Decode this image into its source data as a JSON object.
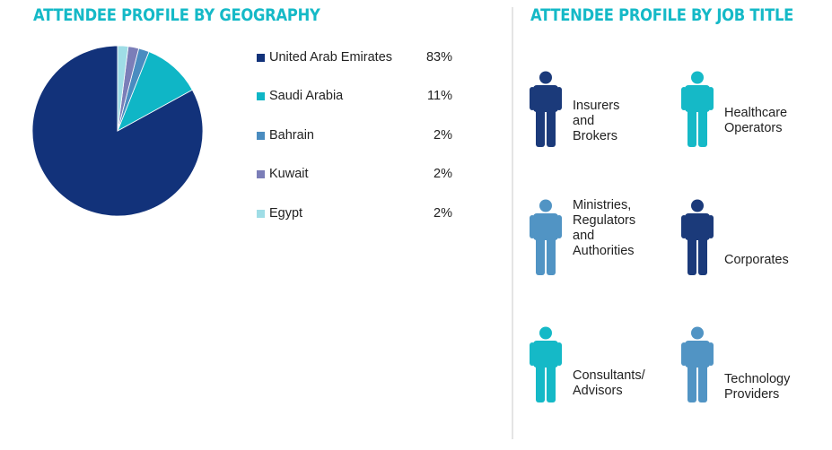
{
  "geography": {
    "title": "ATTENDEE PROFILE BY GEOGRAPHY"
  },
  "job": {
    "title": "ATTENDEE PROFILE BY JOB TITLE",
    "items": [
      {
        "label": "Insurers\nand\nBrokers",
        "color": "#1b3a7a",
        "icon": "person-icon"
      },
      {
        "label": "Healthcare\nOperators",
        "color": "#15b9c7",
        "icon": "person-icon"
      },
      {
        "label": "Ministries,\nRegulators\nand\nAuthorities",
        "color": "#5194c4",
        "icon": "person-icon"
      },
      {
        "label": "Corporates",
        "color": "#1b3a7a",
        "icon": "person-icon"
      },
      {
        "label": "Consultants/\nAdvisors",
        "color": "#15b9c7",
        "icon": "person-icon"
      },
      {
        "label": "Technology\nProviders",
        "color": "#5194c4",
        "icon": "person-icon"
      }
    ]
  },
  "chart_data": {
    "type": "pie",
    "title": "ATTENDEE PROFILE BY GEOGRAPHY",
    "legend": "right",
    "slices": [
      {
        "label": "United Arab Emirates",
        "value": 83,
        "display": "83%",
        "color": "#12327a"
      },
      {
        "label": "Saudi Arabia",
        "value": 11,
        "display": "11%",
        "color": "#0fb6c6"
      },
      {
        "label": "Bahrain",
        "value": 2,
        "display": "2%",
        "color": "#4a8cc0"
      },
      {
        "label": "Kuwait",
        "value": 2,
        "display": "2%",
        "color": "#7b7eb8"
      },
      {
        "label": "Egypt",
        "value": 2,
        "display": "2%",
        "color": "#9fdde6"
      }
    ]
  }
}
